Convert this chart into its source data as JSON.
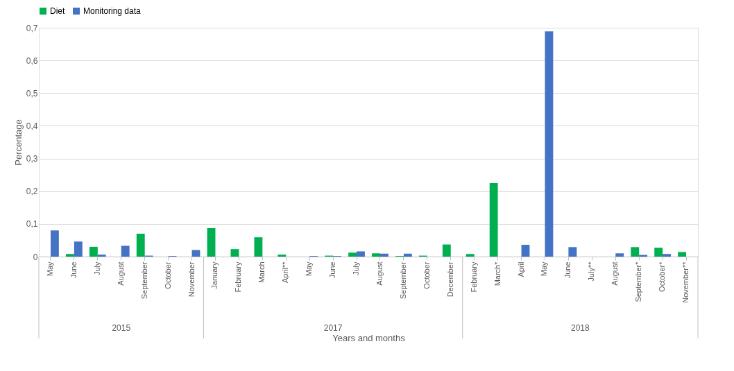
{
  "chart_data": {
    "type": "bar",
    "xlabel": "Years and months",
    "ylabel": "Percentage",
    "categories": [
      "May",
      "June",
      "July",
      "August",
      "September",
      "October",
      "November",
      "January",
      "February",
      "March",
      "April**",
      "May",
      "June",
      "July",
      "August",
      "September",
      "October",
      "December",
      "February",
      "March*",
      "April",
      "May",
      "June",
      "July**",
      "August",
      "September*",
      "October*",
      "November**"
    ],
    "series": [
      {
        "name": "Diet",
        "color": "#00b050",
        "values": [
          0,
          0.008,
          0.03,
          0,
          0.07,
          0,
          0,
          0.087,
          0.023,
          0.059,
          0.006,
          0,
          0.003,
          0.012,
          0.01,
          0.002,
          0.003,
          0.037,
          0.008,
          0.225,
          0,
          0,
          0,
          0,
          0,
          0.029,
          0.027,
          0.014
        ]
      },
      {
        "name": "Monitoring data",
        "color": "#4472c4",
        "values": [
          0.08,
          0.046,
          0.006,
          0.033,
          0.003,
          0.002,
          0.02,
          0,
          0,
          0,
          0,
          0.002,
          0.002,
          0.016,
          0.009,
          0.009,
          0,
          0,
          0,
          0,
          0.036,
          0.689,
          0.029,
          0,
          0.01,
          0.005,
          0.008,
          0
        ]
      }
    ],
    "ylim": [
      0,
      0.7
    ],
    "yticks": [
      0,
      {
        "value": 0.1,
        "label": "0,1"
      },
      {
        "value": 0.2,
        "label": "0,2"
      },
      {
        "value": 0.3,
        "label": "0,3"
      },
      {
        "value": 0.4,
        "label": "0,4"
      },
      {
        "value": 0.5,
        "label": "0,5"
      },
      {
        "value": 0.6,
        "label": "0,6"
      },
      {
        "value": 0.7,
        "label": "0,7"
      }
    ],
    "grid": "y",
    "legend": "top",
    "annotations": [
      "2015",
      "2017",
      "2018"
    ]
  }
}
